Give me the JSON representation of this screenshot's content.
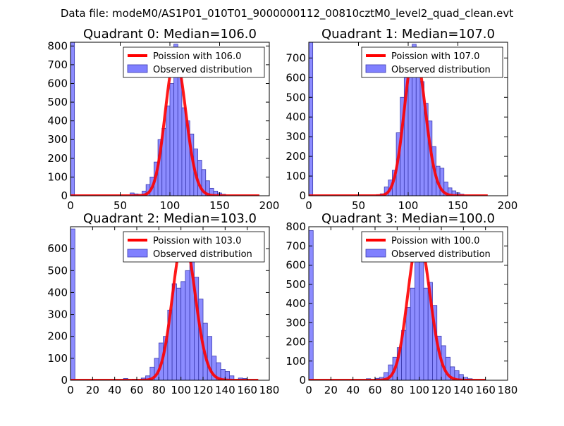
{
  "colors": {
    "bar_fill": "#8080ff",
    "bar_edge": "#3a3ab0",
    "poisson_line": "#ff0000",
    "axes": "#000000",
    "background": "#ffffff"
  },
  "chart_data": {
    "type": "bar",
    "suptitle": "Data file: modeM0/AS1P01_010T01_9000000112_00810cztM0_level2_quad_clean.evt",
    "legend_position": "upper-right",
    "panels": [
      {
        "title": "Quadrant 0: Median=106.0",
        "median": 106.0,
        "legend": {
          "poisson": "Poission with 106.0",
          "observed": "Observed distribution"
        },
        "xlim": [
          0,
          200
        ],
        "ylim": [
          0,
          820
        ],
        "xticks": [
          0,
          50,
          100,
          150,
          200
        ],
        "yticks": [
          0,
          100,
          200,
          300,
          400,
          500,
          600,
          700,
          800
        ],
        "bin_width": 4,
        "bins": [
          {
            "x": 0,
            "count": 820
          },
          {
            "x": 60,
            "count": 15
          },
          {
            "x": 64,
            "count": 10
          },
          {
            "x": 68,
            "count": 8
          },
          {
            "x": 72,
            "count": 25
          },
          {
            "x": 76,
            "count": 60
          },
          {
            "x": 80,
            "count": 100
          },
          {
            "x": 84,
            "count": 180
          },
          {
            "x": 88,
            "count": 300
          },
          {
            "x": 92,
            "count": 360
          },
          {
            "x": 96,
            "count": 480
          },
          {
            "x": 100,
            "count": 600
          },
          {
            "x": 104,
            "count": 810
          },
          {
            "x": 108,
            "count": 640
          },
          {
            "x": 112,
            "count": 470
          },
          {
            "x": 116,
            "count": 400
          },
          {
            "x": 120,
            "count": 330
          },
          {
            "x": 124,
            "count": 250
          },
          {
            "x": 128,
            "count": 190
          },
          {
            "x": 132,
            "count": 140
          },
          {
            "x": 136,
            "count": 80
          },
          {
            "x": 140,
            "count": 40
          },
          {
            "x": 144,
            "count": 25
          },
          {
            "x": 148,
            "count": 15
          },
          {
            "x": 152,
            "count": 8
          }
        ],
        "poisson_peak": 740,
        "poisson_range": [
          0,
          190
        ]
      },
      {
        "title": "Quadrant 1: Median=107.0",
        "median": 107.0,
        "legend": {
          "poisson": "Poission with 107.0",
          "observed": "Observed distribution"
        },
        "xlim": [
          0,
          200
        ],
        "ylim": [
          0,
          780
        ],
        "xticks": [
          0,
          50,
          100,
          150,
          200
        ],
        "yticks": [
          0,
          100,
          200,
          300,
          400,
          500,
          600,
          700
        ],
        "bin_width": 4,
        "bins": [
          {
            "x": 0,
            "count": 780
          },
          {
            "x": 68,
            "count": 5
          },
          {
            "x": 72,
            "count": 10
          },
          {
            "x": 76,
            "count": 45
          },
          {
            "x": 80,
            "count": 80
          },
          {
            "x": 84,
            "count": 130
          },
          {
            "x": 88,
            "count": 320
          },
          {
            "x": 92,
            "count": 500
          },
          {
            "x": 96,
            "count": 600
          },
          {
            "x": 100,
            "count": 680
          },
          {
            "x": 104,
            "count": 770
          },
          {
            "x": 108,
            "count": 640
          },
          {
            "x": 112,
            "count": 580
          },
          {
            "x": 116,
            "count": 470
          },
          {
            "x": 120,
            "count": 380
          },
          {
            "x": 124,
            "count": 250
          },
          {
            "x": 128,
            "count": 150
          },
          {
            "x": 132,
            "count": 140
          },
          {
            "x": 136,
            "count": 70
          },
          {
            "x": 140,
            "count": 40
          },
          {
            "x": 144,
            "count": 25
          },
          {
            "x": 148,
            "count": 15
          },
          {
            "x": 152,
            "count": 8
          }
        ],
        "poisson_peak": 740,
        "poisson_range": [
          0,
          180
        ]
      },
      {
        "title": "Quadrant 2: Median=103.0",
        "median": 103.0,
        "legend": {
          "poisson": "Poission with 103.0",
          "observed": "Observed distribution"
        },
        "xlim": [
          0,
          180
        ],
        "ylim": [
          0,
          700
        ],
        "xticks": [
          0,
          20,
          40,
          60,
          80,
          100,
          120,
          140,
          160,
          180
        ],
        "yticks": [
          0,
          100,
          200,
          300,
          400,
          500,
          600
        ],
        "bin_width": 4,
        "bins": [
          {
            "x": 0,
            "count": 690
          },
          {
            "x": 48,
            "count": 8
          },
          {
            "x": 56,
            "count": 5
          },
          {
            "x": 64,
            "count": 10
          },
          {
            "x": 68,
            "count": 20
          },
          {
            "x": 72,
            "count": 60
          },
          {
            "x": 76,
            "count": 100
          },
          {
            "x": 80,
            "count": 170
          },
          {
            "x": 84,
            "count": 200
          },
          {
            "x": 88,
            "count": 320
          },
          {
            "x": 92,
            "count": 440
          },
          {
            "x": 96,
            "count": 420
          },
          {
            "x": 100,
            "count": 450
          },
          {
            "x": 104,
            "count": 500
          },
          {
            "x": 108,
            "count": 660
          },
          {
            "x": 112,
            "count": 470
          },
          {
            "x": 116,
            "count": 370
          },
          {
            "x": 120,
            "count": 260
          },
          {
            "x": 124,
            "count": 200
          },
          {
            "x": 128,
            "count": 110
          },
          {
            "x": 132,
            "count": 80
          },
          {
            "x": 136,
            "count": 50
          },
          {
            "x": 140,
            "count": 40
          },
          {
            "x": 144,
            "count": 20
          },
          {
            "x": 152,
            "count": 10
          },
          {
            "x": 156,
            "count": 8
          }
        ],
        "poisson_peak": 650,
        "poisson_range": [
          0,
          170
        ]
      },
      {
        "title": "Quadrant 3: Median=100.0",
        "median": 100.0,
        "legend": {
          "poisson": "Poission with 100.0",
          "observed": "Observed distribution"
        },
        "xlim": [
          0,
          180
        ],
        "ylim": [
          0,
          800
        ],
        "xticks": [
          0,
          20,
          40,
          60,
          80,
          100,
          120,
          140,
          160,
          180
        ],
        "yticks": [
          0,
          100,
          200,
          300,
          400,
          500,
          600,
          700,
          800
        ],
        "bin_width": 4,
        "bins": [
          {
            "x": 0,
            "count": 780
          },
          {
            "x": 52,
            "count": 8
          },
          {
            "x": 60,
            "count": 10
          },
          {
            "x": 64,
            "count": 15
          },
          {
            "x": 68,
            "count": 40
          },
          {
            "x": 72,
            "count": 80
          },
          {
            "x": 76,
            "count": 120
          },
          {
            "x": 80,
            "count": 170
          },
          {
            "x": 84,
            "count": 260
          },
          {
            "x": 88,
            "count": 380
          },
          {
            "x": 92,
            "count": 480
          },
          {
            "x": 96,
            "count": 680
          },
          {
            "x": 100,
            "count": 750
          },
          {
            "x": 104,
            "count": 480
          },
          {
            "x": 108,
            "count": 510
          },
          {
            "x": 112,
            "count": 390
          },
          {
            "x": 116,
            "count": 230
          },
          {
            "x": 120,
            "count": 180
          },
          {
            "x": 124,
            "count": 120
          },
          {
            "x": 128,
            "count": 70
          },
          {
            "x": 132,
            "count": 50
          },
          {
            "x": 136,
            "count": 30
          },
          {
            "x": 140,
            "count": 15
          },
          {
            "x": 144,
            "count": 8
          }
        ],
        "poisson_peak": 740,
        "poisson_range": [
          0,
          160
        ]
      }
    ]
  }
}
